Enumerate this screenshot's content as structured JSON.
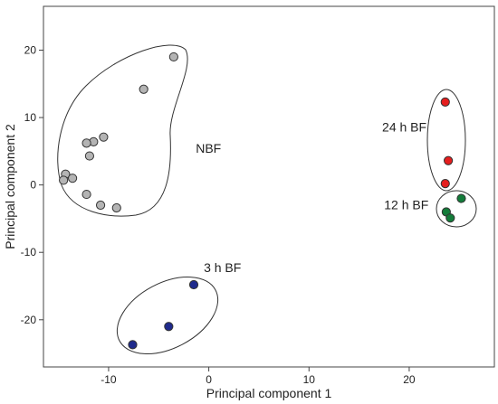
{
  "chart_data": {
    "type": "scatter",
    "title": "",
    "xlabel": "Principal component 1",
    "ylabel": "Principal component 2",
    "xlim": [
      -16.5,
      28.5
    ],
    "ylim": [
      -27,
      26.5
    ],
    "xticks": [
      -10,
      0,
      10,
      20
    ],
    "yticks": [
      -20,
      -10,
      0,
      10,
      20
    ],
    "xtick_labels": [
      "-10",
      "0",
      "10",
      "20"
    ],
    "ytick_labels": [
      "-20",
      "-10",
      "0",
      "10",
      "20"
    ],
    "grid": false,
    "series": [
      {
        "name": "NBF",
        "color": "#b4b4b4",
        "points": [
          {
            "x": -3.5,
            "y": 19.0
          },
          {
            "x": -6.5,
            "y": 14.2
          },
          {
            "x": -10.5,
            "y": 7.1
          },
          {
            "x": -11.5,
            "y": 6.4
          },
          {
            "x": -12.2,
            "y": 6.2
          },
          {
            "x": -11.9,
            "y": 4.3
          },
          {
            "x": -14.3,
            "y": 1.6
          },
          {
            "x": -13.6,
            "y": 1.0
          },
          {
            "x": -14.5,
            "y": 0.7
          },
          {
            "x": -12.2,
            "y": -1.4
          },
          {
            "x": -10.8,
            "y": -3.0
          },
          {
            "x": -9.2,
            "y": -3.4
          }
        ]
      },
      {
        "name": "24 h BF",
        "color": "#e51e1e",
        "points": [
          {
            "x": 23.6,
            "y": 12.3
          },
          {
            "x": 23.9,
            "y": 3.6
          },
          {
            "x": 23.6,
            "y": 0.2
          }
        ]
      },
      {
        "name": "12 h BF",
        "color": "#137c3a",
        "points": [
          {
            "x": 25.2,
            "y": -2.0
          },
          {
            "x": 23.7,
            "y": -4.0
          },
          {
            "x": 24.1,
            "y": -4.9
          }
        ]
      },
      {
        "name": "3 h BF",
        "color": "#1f2a8c",
        "points": [
          {
            "x": -1.5,
            "y": -14.8
          },
          {
            "x": -4.0,
            "y": -21.0
          },
          {
            "x": -7.6,
            "y": -23.7
          }
        ]
      }
    ],
    "group_labels": [
      {
        "text": "NBF",
        "x": -1.3,
        "y": 4.8
      },
      {
        "text": "24 h BF",
        "x": 17.3,
        "y": 7.9
      },
      {
        "text": "12 h BF",
        "x": 17.5,
        "y": -3.6
      },
      {
        "text": "3 h BF",
        "x": -0.5,
        "y": -12.9
      }
    ]
  }
}
